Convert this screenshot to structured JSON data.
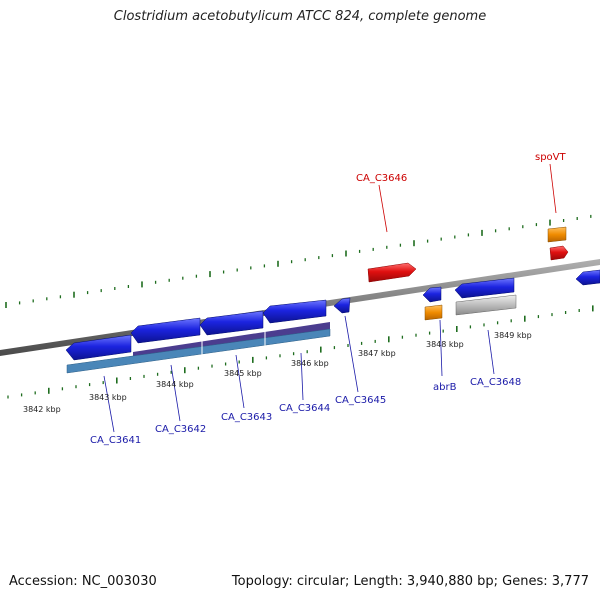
{
  "title": "Clostridium acetobutylicum ATCC 824, complete genome",
  "footer": {
    "accession": "Accession: NC_003030",
    "summary": "Topology: circular; Length: 3,940,880 bp; Genes: 3,777"
  },
  "colors": {
    "backbone": "#808080",
    "tick": "#1f6d1f",
    "gene_fwd": "#e01010",
    "gene_rev": "#1c24e0",
    "label_fwd": "#cc0000",
    "label_rev": "#1a1aa8",
    "orange": "#f08c00",
    "grey": "#bdbdbd",
    "cds_purple": "#4b3d8f",
    "cds_blue": "#4a86b8"
  },
  "scale_labels": [
    "3842 kbp",
    "3843 kbp",
    "3844 kbp",
    "3845 kbp",
    "3846 kbp",
    "3847 kbp",
    "3848 kbp",
    "3849 kbp"
  ],
  "gene_labels": [
    {
      "id": "CA_C3641",
      "text": "CA_C3641",
      "strand": "reverse"
    },
    {
      "id": "CA_C3642",
      "text": "CA_C3642",
      "strand": "reverse"
    },
    {
      "id": "CA_C3643",
      "text": "CA_C3643",
      "strand": "reverse"
    },
    {
      "id": "CA_C3644",
      "text": "CA_C3644",
      "strand": "reverse"
    },
    {
      "id": "CA_C3645",
      "text": "CA_C3645",
      "strand": "reverse"
    },
    {
      "id": "abrB",
      "text": "abrB",
      "strand": "reverse"
    },
    {
      "id": "CA_C3648",
      "text": "CA_C3648",
      "strand": "reverse"
    },
    {
      "id": "CA_C3646",
      "text": "CA_C3646",
      "strand": "forward"
    },
    {
      "id": "spoVT",
      "text": "spoVT",
      "strand": "forward"
    }
  ]
}
